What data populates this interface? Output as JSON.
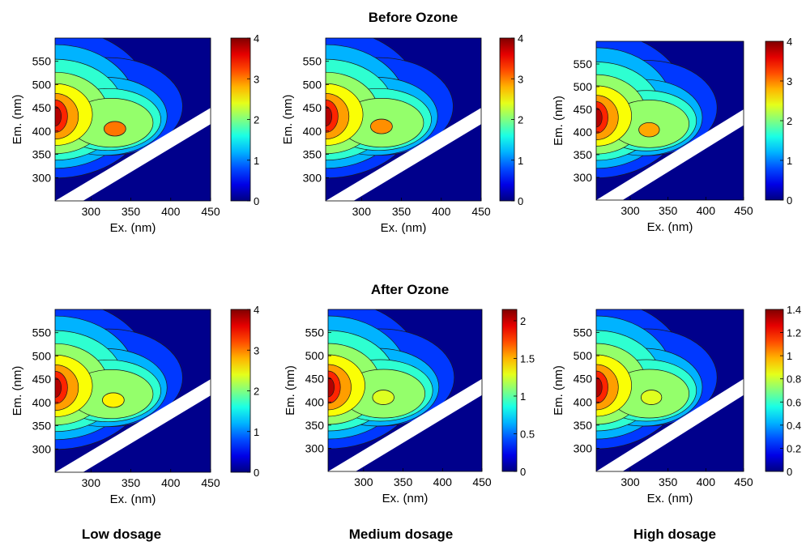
{
  "sections": {
    "before_title": "Before Ozone",
    "after_title": "After Ozone"
  },
  "dosage_labels": [
    "Low dosage",
    "Medium dosage",
    "High dosage"
  ],
  "chart_data": [
    {
      "type": "heatmap",
      "panel": "Before Ozone - Low dosage",
      "xlabel": "Ex. (nm)",
      "ylabel": "Em. (nm)",
      "xlim": [
        255,
        450
      ],
      "ylim": [
        250,
        600
      ],
      "xticks": [
        300,
        350,
        400,
        450
      ],
      "yticks": [
        300,
        350,
        400,
        450,
        500,
        550
      ],
      "colorbar": {
        "min": 0,
        "max": 4,
        "ticks": [
          0,
          1,
          2,
          3,
          4
        ]
      },
      "peaks": [
        {
          "ex": 255,
          "em": 428,
          "value": 3.9
        },
        {
          "ex": 330,
          "em": 405,
          "value": 3.1
        }
      ],
      "colormap": "jet",
      "grid": false
    },
    {
      "type": "heatmap",
      "panel": "Before Ozone - Medium dosage",
      "xlabel": "Ex. (nm)",
      "ylabel": "Em. (nm)",
      "xlim": [
        255,
        450
      ],
      "ylim": [
        250,
        600
      ],
      "xticks": [
        300,
        350,
        400,
        450
      ],
      "yticks": [
        300,
        350,
        400,
        450,
        500,
        550
      ],
      "colorbar": {
        "min": 0,
        "max": 4,
        "ticks": [
          0,
          1,
          2,
          3,
          4
        ]
      },
      "peaks": [
        {
          "ex": 255,
          "em": 428,
          "value": 3.9
        },
        {
          "ex": 325,
          "em": 410,
          "value": 3.0
        }
      ],
      "colormap": "jet",
      "grid": false
    },
    {
      "type": "heatmap",
      "panel": "Before Ozone - High dosage",
      "xlabel": "Ex. (nm)",
      "ylabel": "Em. (nm)",
      "xlim": [
        255,
        450
      ],
      "ylim": [
        250,
        600
      ],
      "xticks": [
        300,
        350,
        400,
        450
      ],
      "yticks": [
        300,
        350,
        400,
        450,
        500,
        550
      ],
      "colorbar": {
        "min": 0,
        "max": 4,
        "ticks": [
          0,
          1,
          2,
          3,
          4
        ]
      },
      "peaks": [
        {
          "ex": 255,
          "em": 428,
          "value": 3.8
        },
        {
          "ex": 325,
          "em": 405,
          "value": 2.9
        }
      ],
      "colormap": "jet",
      "grid": false
    },
    {
      "type": "heatmap",
      "panel": "After Ozone - Low dosage",
      "xlabel": "Ex. (nm)",
      "ylabel": "Em. (nm)",
      "xlim": [
        255,
        450
      ],
      "ylim": [
        250,
        600
      ],
      "xticks": [
        300,
        350,
        400,
        450
      ],
      "yticks": [
        300,
        350,
        400,
        450,
        500,
        550
      ],
      "colorbar": {
        "min": 0,
        "max": 4,
        "ticks": [
          0,
          1,
          2,
          3,
          4
        ]
      },
      "peaks": [
        {
          "ex": 255,
          "em": 428,
          "value": 3.8
        },
        {
          "ex": 328,
          "em": 405,
          "value": 2.6
        }
      ],
      "colormap": "jet",
      "grid": false
    },
    {
      "type": "heatmap",
      "panel": "After Ozone - Medium dosage",
      "xlabel": "Ex. (nm)",
      "ylabel": "Em. (nm)",
      "xlim": [
        255,
        450
      ],
      "ylim": [
        250,
        600
      ],
      "xticks": [
        300,
        350,
        400,
        450
      ],
      "yticks": [
        300,
        350,
        400,
        450,
        500,
        550
      ],
      "colorbar": {
        "min": 0,
        "max": 2.15,
        "ticks": [
          0,
          0.5,
          1,
          1.5,
          2
        ],
        "tick_labels": [
          "0",
          "0.5",
          "1",
          "1.5",
          "2"
        ]
      },
      "peaks": [
        {
          "ex": 255,
          "em": 428,
          "value": 2.1
        },
        {
          "ex": 325,
          "em": 410,
          "value": 1.3
        }
      ],
      "colormap": "jet",
      "grid": false
    },
    {
      "type": "heatmap",
      "panel": "After Ozone - High dosage",
      "xlabel": "Ex. (nm)",
      "ylabel": "Em. (nm)",
      "xlim": [
        255,
        450
      ],
      "ylim": [
        250,
        600
      ],
      "xticks": [
        300,
        350,
        400,
        450
      ],
      "yticks": [
        300,
        350,
        400,
        450,
        500,
        550
      ],
      "colorbar": {
        "min": 0,
        "max": 1.4,
        "ticks": [
          0,
          0.2,
          0.4,
          0.6,
          0.8,
          1,
          1.2,
          1.4
        ],
        "tick_labels": [
          "0",
          "0.2",
          "0.4",
          "0.6",
          "0.8",
          "1",
          "1.2",
          "1.4"
        ]
      },
      "peaks": [
        {
          "ex": 255,
          "em": 428,
          "value": 1.35
        },
        {
          "ex": 328,
          "em": 410,
          "value": 0.85
        }
      ],
      "colormap": "jet",
      "grid": false
    }
  ]
}
